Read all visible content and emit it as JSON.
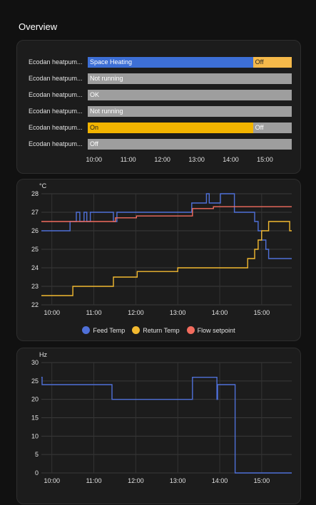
{
  "page": {
    "title": "Overview"
  },
  "timeline": {
    "rows": [
      {
        "label": "Ecodan heatpum...",
        "segments": [
          {
            "text": "Space Heating",
            "start": "09:49",
            "end": "14:39",
            "color": "#3d6fd6",
            "text_color": "#ffffff"
          },
          {
            "text": "Off",
            "start": "14:39",
            "end": "15:47",
            "color": "#f5b94a",
            "text_color": "#222222"
          }
        ]
      },
      {
        "label": "Ecodan heatpum...",
        "segments": [
          {
            "text": "Not running",
            "start": "09:49",
            "end": "15:47",
            "color": "#9e9e9e",
            "text_color": "#ffffff"
          }
        ]
      },
      {
        "label": "Ecodan heatpum...",
        "segments": [
          {
            "text": "OK",
            "start": "09:49",
            "end": "15:47",
            "color": "#9e9e9e",
            "text_color": "#ffffff"
          }
        ]
      },
      {
        "label": "Ecodan heatpum...",
        "segments": [
          {
            "text": "Not running",
            "start": "09:49",
            "end": "15:47",
            "color": "#9e9e9e",
            "text_color": "#ffffff"
          }
        ]
      },
      {
        "label": "Ecodan heatpum...",
        "segments": [
          {
            "text": "On",
            "start": "09:49",
            "end": "14:39",
            "color": "#f2b400",
            "text_color": "#222222"
          },
          {
            "text": "Off",
            "start": "14:39",
            "end": "15:47",
            "color": "#9e9e9e",
            "text_color": "#ffffff"
          }
        ]
      },
      {
        "label": "Ecodan heatpum...",
        "segments": [
          {
            "text": "Off",
            "start": "09:49",
            "end": "15:47",
            "color": "#9e9e9e",
            "text_color": "#ffffff"
          }
        ]
      }
    ],
    "ticks": [
      "10:00",
      "11:00",
      "12:00",
      "13:00",
      "14:00",
      "15:00"
    ],
    "range": [
      "09:49",
      "15:47"
    ]
  },
  "chart_data": [
    {
      "type": "line",
      "unit": "°C",
      "ylim": [
        22,
        28
      ],
      "yticks": [
        22,
        23,
        24,
        25,
        26,
        27,
        28
      ],
      "xlim": [
        "09:45",
        "15:43"
      ],
      "xticks": [
        "10:00",
        "11:00",
        "12:00",
        "13:00",
        "14:00",
        "15:00"
      ],
      "grid": true,
      "series": [
        {
          "name": "Feed Temp",
          "color": "#4f70d8",
          "step": true,
          "points": [
            [
              "09:45",
              26.0
            ],
            [
              "10:26",
              26.5
            ],
            [
              "10:30",
              26.5
            ],
            [
              "10:35",
              27.0
            ],
            [
              "10:40",
              26.5
            ],
            [
              "10:46",
              27.0
            ],
            [
              "10:50",
              26.5
            ],
            [
              "10:55",
              27.0
            ],
            [
              "11:20",
              27.0
            ],
            [
              "11:28",
              26.5
            ],
            [
              "11:33",
              27.0
            ],
            [
              "12:10",
              27.0
            ],
            [
              "13:15",
              27.0
            ],
            [
              "13:20",
              27.5
            ],
            [
              "13:40",
              27.5
            ],
            [
              "13:41",
              28.0
            ],
            [
              "13:45",
              27.5
            ],
            [
              "14:00",
              27.5
            ],
            [
              "14:01",
              28.0
            ],
            [
              "14:20",
              28.0
            ],
            [
              "14:21",
              27.0
            ],
            [
              "14:40",
              27.0
            ],
            [
              "14:50",
              26.5
            ],
            [
              "14:55",
              26.0
            ],
            [
              "15:00",
              25.5
            ],
            [
              "15:06",
              25.0
            ],
            [
              "15:10",
              24.5
            ],
            [
              "15:43",
              24.5
            ]
          ]
        },
        {
          "name": "Return Temp",
          "color": "#f2b930",
          "step": true,
          "points": [
            [
              "09:45",
              22.5
            ],
            [
              "10:29",
              22.5
            ],
            [
              "10:30",
              23.0
            ],
            [
              "11:27",
              23.0
            ],
            [
              "11:28",
              23.5
            ],
            [
              "11:35",
              23.5
            ],
            [
              "12:00",
              23.5
            ],
            [
              "12:02",
              23.8
            ],
            [
              "12:58",
              23.8
            ],
            [
              "13:00",
              24.0
            ],
            [
              "13:20",
              24.0
            ],
            [
              "13:25",
              24.0
            ],
            [
              "14:30",
              24.0
            ],
            [
              "14:40",
              24.5
            ],
            [
              "14:50",
              25.0
            ],
            [
              "14:55",
              25.5
            ],
            [
              "15:00",
              26.0
            ],
            [
              "15:10",
              26.5
            ],
            [
              "15:30",
              26.5
            ],
            [
              "15:40",
              26.0
            ],
            [
              "15:43",
              26.0
            ]
          ]
        },
        {
          "name": "Flow setpoint",
          "color": "#f26c5e",
          "step": true,
          "points": [
            [
              "09:45",
              26.5
            ],
            [
              "11:30",
              26.5
            ],
            [
              "11:31",
              26.7
            ],
            [
              "12:00",
              26.7
            ],
            [
              "12:01",
              26.8
            ],
            [
              "13:20",
              26.8
            ],
            [
              "13:21",
              27.2
            ],
            [
              "13:50",
              27.2
            ],
            [
              "13:51",
              27.3
            ],
            [
              "15:43",
              27.3
            ]
          ]
        }
      ]
    },
    {
      "type": "line",
      "unit": "Hz",
      "ylim": [
        0,
        30
      ],
      "yticks": [
        0,
        5,
        10,
        15,
        20,
        25,
        30
      ],
      "xlim": [
        "09:45",
        "15:43"
      ],
      "xticks": [
        "10:00",
        "11:00",
        "12:00",
        "13:00",
        "14:00",
        "15:00"
      ],
      "grid": true,
      "series": [
        {
          "name": "",
          "color": "#4f70d8",
          "step": true,
          "points": [
            [
              "09:45",
              26.0
            ],
            [
              "09:46",
              24.0
            ],
            [
              "11:25",
              24.0
            ],
            [
              "11:26",
              20.0
            ],
            [
              "13:20",
              20.0
            ],
            [
              "13:21",
              26.0
            ],
            [
              "13:55",
              26.0
            ],
            [
              "13:56",
              20.0
            ],
            [
              "13:57",
              24.0
            ],
            [
              "14:20",
              24.0
            ],
            [
              "14:22",
              0.0
            ],
            [
              "15:43",
              0.0
            ]
          ]
        }
      ]
    }
  ]
}
